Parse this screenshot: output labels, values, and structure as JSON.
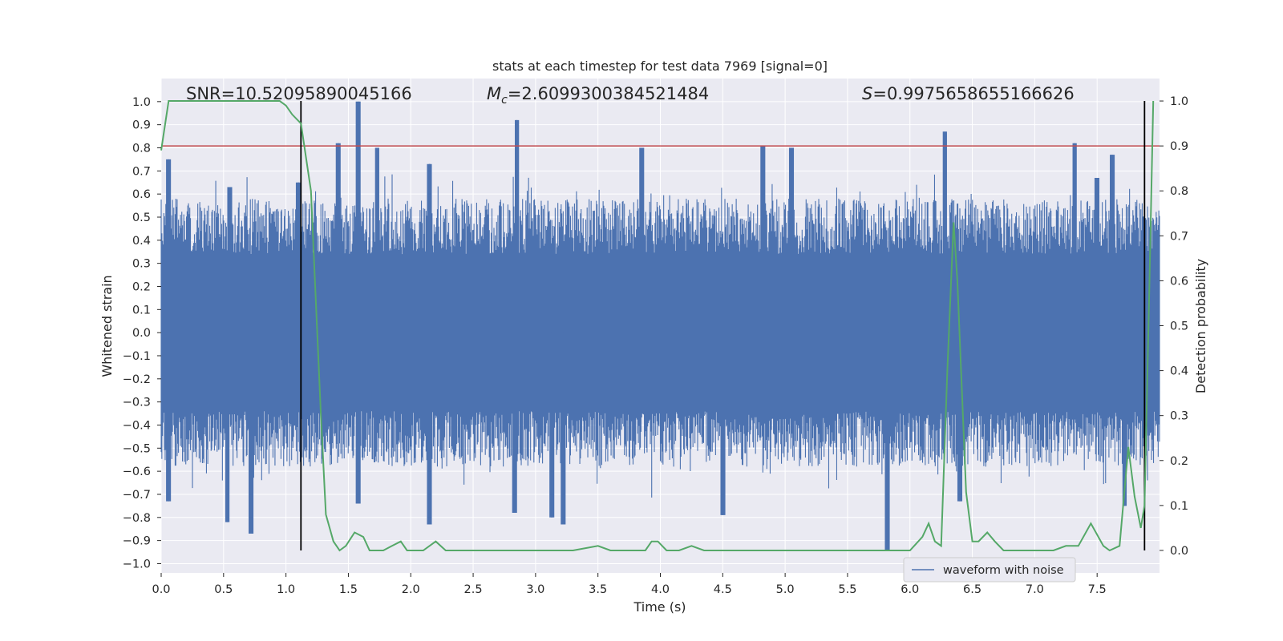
{
  "chart_data": {
    "type": "line",
    "title": "stats at each timestep for test data 7969 [signal=0]",
    "xlabel": "Time (s)",
    "ylabel": "Whitened strain",
    "ylabel_right": "Detection probability",
    "xlim": [
      0.0,
      8.0
    ],
    "ylim": [
      -1.04,
      1.1
    ],
    "ylim_right": [
      -0.05,
      1.05
    ],
    "x_ticks": [
      "0.0",
      "0.5",
      "1.0",
      "1.5",
      "2.0",
      "2.5",
      "3.0",
      "3.5",
      "4.0",
      "4.5",
      "5.0",
      "5.5",
      "6.0",
      "6.5",
      "7.0",
      "7.5"
    ],
    "y_ticks": [
      "1.0",
      "0.9",
      "0.8",
      "0.7",
      "0.6",
      "0.5",
      "0.4",
      "0.3",
      "0.2",
      "0.1",
      "0.0",
      "−0.1",
      "−0.2",
      "−0.3",
      "−0.4",
      "−0.5",
      "−0.6",
      "−0.7",
      "−0.8",
      "−0.9",
      "−1.0"
    ],
    "y_ticks_right": [
      "1.0",
      "0.9",
      "0.8",
      "0.7",
      "0.6",
      "0.5",
      "0.4",
      "0.3",
      "0.2",
      "0.1",
      "0.0"
    ],
    "grid": true,
    "legend": {
      "placement": "bottom-right",
      "entries": [
        "waveform with noise"
      ]
    },
    "annotations": {
      "snr": "SNR=10.52095890045166",
      "mc_symbol": "M",
      "mc_sub": "c",
      "mc_value": "=2.6099300384521484",
      "s_symbol": "S",
      "s_value": "=0.9975658655166626"
    },
    "colors": {
      "waveform": "#4c72b0",
      "probability": "#55a868",
      "threshold": "#c44e52",
      "markers": "#000000",
      "background": "#eaeaf2",
      "grid": "#ffffff"
    },
    "threshold_probability": 0.9,
    "vertical_markers_x": [
      1.12,
      7.88
    ],
    "series": [
      {
        "name": "waveform with noise",
        "axis": "left",
        "envelope_upper_peaks": [
          [
            0.06,
            0.75
          ],
          [
            0.55,
            0.63
          ],
          [
            1.1,
            0.65
          ],
          [
            1.42,
            0.82
          ],
          [
            1.58,
            1.0
          ],
          [
            1.73,
            0.8
          ],
          [
            2.15,
            0.73
          ],
          [
            2.85,
            0.92
          ],
          [
            3.85,
            0.8
          ],
          [
            4.82,
            0.81
          ],
          [
            5.05,
            0.8
          ],
          [
            6.28,
            0.87
          ],
          [
            7.32,
            0.82
          ],
          [
            7.5,
            0.67
          ],
          [
            7.62,
            0.77
          ]
        ],
        "envelope_lower_peaks": [
          [
            0.06,
            -0.73
          ],
          [
            0.53,
            -0.82
          ],
          [
            0.72,
            -0.87
          ],
          [
            1.58,
            -0.74
          ],
          [
            2.15,
            -0.83
          ],
          [
            2.83,
            -0.78
          ],
          [
            3.13,
            -0.8
          ],
          [
            3.22,
            -0.83
          ],
          [
            4.5,
            -0.79
          ],
          [
            5.82,
            -0.94
          ],
          [
            6.4,
            -0.73
          ],
          [
            7.72,
            -0.75
          ]
        ]
      },
      {
        "name": "",
        "axis": "right",
        "x": [
          0.0,
          0.06,
          0.1,
          0.2,
          0.4,
          0.6,
          0.8,
          0.95,
          1.0,
          1.05,
          1.12,
          1.2,
          1.28,
          1.32,
          1.38,
          1.43,
          1.48,
          1.55,
          1.62,
          1.67,
          1.72,
          1.78,
          1.85,
          1.92,
          1.97,
          2.0,
          2.1,
          2.2,
          2.28,
          2.35,
          2.5,
          2.7,
          2.85,
          3.0,
          3.15,
          3.3,
          3.5,
          3.6,
          3.7,
          3.8,
          3.88,
          3.93,
          3.98,
          4.05,
          4.15,
          4.25,
          4.35,
          4.5,
          4.7,
          5.0,
          5.5,
          5.8,
          6.0,
          6.1,
          6.15,
          6.2,
          6.25,
          6.3,
          6.35,
          6.38,
          6.45,
          6.5,
          6.55,
          6.62,
          6.68,
          6.75,
          6.85,
          7.0,
          7.15,
          7.25,
          7.35,
          7.45,
          7.55,
          7.6,
          7.68,
          7.75,
          7.8,
          7.85,
          7.88,
          7.92,
          7.95
        ],
        "values": [
          0.89,
          1.0,
          1.0,
          1.0,
          1.0,
          1.0,
          1.0,
          1.0,
          0.99,
          0.97,
          0.95,
          0.8,
          0.3,
          0.08,
          0.02,
          0.0,
          0.01,
          0.04,
          0.03,
          0.0,
          0.0,
          0.0,
          0.01,
          0.02,
          0.0,
          0.0,
          0.0,
          0.02,
          0.0,
          0.0,
          0.0,
          0.0,
          0.0,
          0.0,
          0.0,
          0.0,
          0.01,
          0.0,
          0.0,
          0.0,
          0.0,
          0.02,
          0.02,
          0.0,
          0.0,
          0.01,
          0.0,
          0.0,
          0.0,
          0.0,
          0.0,
          0.0,
          0.0,
          0.03,
          0.06,
          0.02,
          0.01,
          0.4,
          0.73,
          0.6,
          0.13,
          0.02,
          0.02,
          0.04,
          0.02,
          0.0,
          0.0,
          0.0,
          0.0,
          0.01,
          0.01,
          0.06,
          0.01,
          0.0,
          0.01,
          0.23,
          0.12,
          0.05,
          0.1,
          0.6,
          1.0
        ]
      }
    ]
  }
}
